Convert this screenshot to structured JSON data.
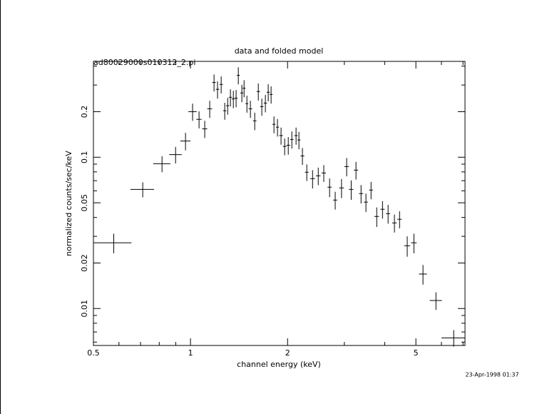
{
  "chart_data": {
    "type": "errorbar",
    "title": "data and folded model",
    "subtitle": "ad80029000s010312_2.pi",
    "x_label": "channel energy (keV)",
    "y_label": "normalized counts/sec/keV",
    "timestamp": "23-Apr-1998 01:37",
    "xscale": "log",
    "yscale": "log",
    "color": "#000000",
    "xlim": [
      0.5,
      7.1
    ],
    "ylim": [
      0.0057,
      0.43
    ],
    "xticks": [
      0.5,
      1,
      2,
      5
    ],
    "xminorticks": [
      0.6,
      0.7,
      0.8,
      0.9,
      3,
      4,
      6,
      7
    ],
    "yticks": [
      0.01,
      0.02,
      0.05,
      0.1,
      0.2
    ],
    "yminorticks": [
      0.006,
      0.007,
      0.008,
      0.009,
      0.03,
      0.04,
      0.06,
      0.07,
      0.08,
      0.09,
      0.3,
      0.4
    ],
    "x": [
      0.578,
      0.711,
      0.816,
      0.899,
      0.965,
      1.015,
      1.063,
      1.107,
      1.147,
      1.183,
      1.213,
      1.245,
      1.277,
      1.304,
      1.33,
      1.358,
      1.385,
      1.407,
      1.443,
      1.466,
      1.496,
      1.534,
      1.582,
      1.623,
      1.664,
      1.707,
      1.742,
      1.778,
      1.815,
      1.861,
      1.909,
      1.959,
      2.01,
      2.062,
      2.125,
      2.169,
      2.224,
      2.294,
      2.391,
      2.49,
      2.59,
      2.7,
      2.81,
      2.94,
      3.05,
      3.15,
      3.26,
      3.38,
      3.5,
      3.63,
      3.78,
      3.94,
      4.1,
      4.29,
      4.45,
      4.7,
      4.93,
      5.26,
      5.77,
      6.55
    ],
    "x_err": [
      0.078,
      0.06,
      0.05,
      0.04,
      0.035,
      0.03,
      0.02,
      0.02,
      0.02,
      0.015,
      0.015,
      0.015,
      0.015,
      0.015,
      0.015,
      0.015,
      0.015,
      0.015,
      0.015,
      0.015,
      0.015,
      0.02,
      0.02,
      0.02,
      0.02,
      0.02,
      0.02,
      0.02,
      0.02,
      0.02,
      0.025,
      0.025,
      0.025,
      0.025,
      0.025,
      0.025,
      0.03,
      0.03,
      0.04,
      0.04,
      0.04,
      0.04,
      0.04,
      0.05,
      0.05,
      0.05,
      0.05,
      0.05,
      0.05,
      0.05,
      0.06,
      0.06,
      0.06,
      0.07,
      0.07,
      0.1,
      0.1,
      0.15,
      0.25,
      0.55
    ],
    "values": [
      0.0272,
      0.0613,
      0.0906,
      0.104,
      0.128,
      0.2,
      0.178,
      0.154,
      0.209,
      0.312,
      0.281,
      0.303,
      0.203,
      0.219,
      0.249,
      0.243,
      0.246,
      0.348,
      0.266,
      0.286,
      0.226,
      0.209,
      0.174,
      0.272,
      0.216,
      0.228,
      0.269,
      0.26,
      0.165,
      0.158,
      0.139,
      0.118,
      0.12,
      0.131,
      0.139,
      0.13,
      0.102,
      0.0796,
      0.0722,
      0.0754,
      0.0787,
      0.0634,
      0.0521,
      0.0627,
      0.0868,
      0.0613,
      0.0822,
      0.0575,
      0.0505,
      0.0607,
      0.0406,
      0.0453,
      0.0424,
      0.0368,
      0.0389,
      0.026,
      0.0272,
      0.0169,
      0.0113,
      0.0064
    ],
    "y_err": [
      0.004,
      0.007,
      0.011,
      0.013,
      0.017,
      0.026,
      0.023,
      0.02,
      0.027,
      0.04,
      0.037,
      0.039,
      0.026,
      0.028,
      0.032,
      0.032,
      0.032,
      0.045,
      0.035,
      0.037,
      0.029,
      0.027,
      0.023,
      0.035,
      0.028,
      0.03,
      0.035,
      0.034,
      0.021,
      0.021,
      0.018,
      0.015,
      0.016,
      0.017,
      0.018,
      0.017,
      0.013,
      0.01,
      0.01,
      0.01,
      0.01,
      0.009,
      0.007,
      0.009,
      0.012,
      0.009,
      0.011,
      0.008,
      0.007,
      0.008,
      0.006,
      0.006,
      0.006,
      0.005,
      0.005,
      0.004,
      0.004,
      0.0025,
      0.0015,
      0.0008
    ]
  }
}
